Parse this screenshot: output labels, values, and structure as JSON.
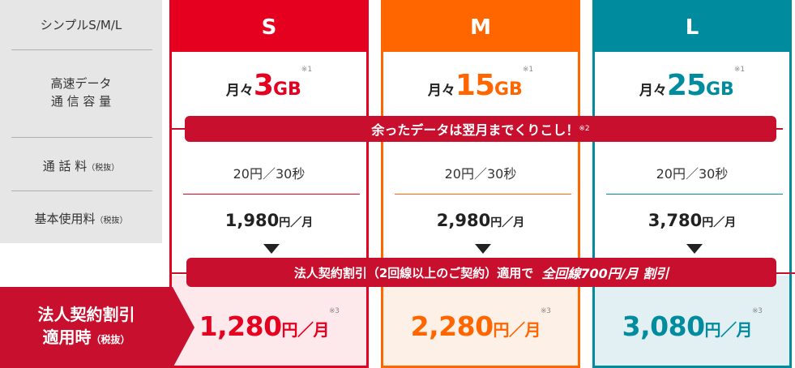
{
  "labels": {
    "header": "シンプルS/M/L",
    "data_line1": "高速データ",
    "data_line2": "通 信 容 量",
    "call": "通 話 料",
    "call_tax": "（税抜）",
    "base": "基本使用料",
    "base_tax": "（税抜）",
    "discount_line1": "法人契約割引",
    "discount_line2": "適用時",
    "discount_tax": "（税抜）"
  },
  "banners": {
    "rollover": "余ったデータは翌月までくりこし！",
    "rollover_note": "※2",
    "corporate": "法人契約割引（2回線以上のご契約）適用で",
    "corporate_highlight": "全回線700円/月 割引"
  },
  "plans": [
    {
      "name": "S",
      "data_prefix": "月々",
      "data_amount": "3",
      "data_unit": "GB",
      "data_note": "※1",
      "call": "20円／30秒",
      "base_amount": "1,980",
      "base_unit": "円／月",
      "discount_amount": "1,280",
      "discount_unit": "円／月",
      "discount_note": "※3"
    },
    {
      "name": "M",
      "data_prefix": "月々",
      "data_amount": "15",
      "data_unit": "GB",
      "data_note": "※1",
      "call": "20円／30秒",
      "base_amount": "2,980",
      "base_unit": "円／月",
      "discount_amount": "2,280",
      "discount_unit": "円／月",
      "discount_note": "※3"
    },
    {
      "name": "L",
      "data_prefix": "月々",
      "data_amount": "25",
      "data_unit": "GB",
      "data_note": "※1",
      "call": "20円／30秒",
      "base_amount": "3,780",
      "base_unit": "円／月",
      "discount_amount": "3,080",
      "discount_unit": "円／月",
      "discount_note": "※3"
    }
  ],
  "colors": {
    "plan_s": "#e60020",
    "plan_m": "#ff6600",
    "plan_l": "#008b9e",
    "plan_s_bg": "#fde8ec",
    "plan_m_bg": "#fdf0e6",
    "plan_l_bg": "#e2f0f3",
    "banner": "#c8102e"
  }
}
